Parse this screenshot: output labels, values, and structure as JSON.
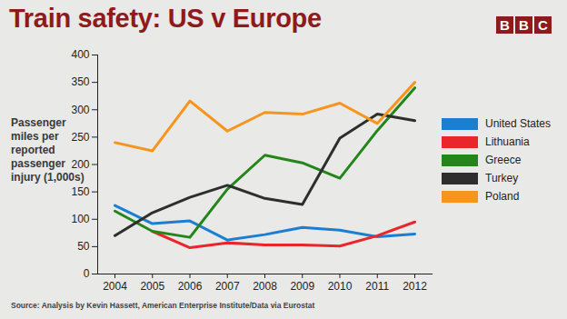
{
  "chart_data": {
    "type": "line",
    "title": "Train safety: US v Europe",
    "logo": "BBC",
    "y_label": "Passenger miles per reported passenger injury (1,000s)",
    "source": "Source: Analysis by Kevin Hassett, American Enterprise Institute/Data via Eurostat",
    "x": [
      2004,
      2005,
      2006,
      2007,
      2008,
      2009,
      2010,
      2011,
      2012
    ],
    "xlim": [
      2004,
      2012
    ],
    "xticks": [
      2004,
      2005,
      2006,
      2007,
      2008,
      2009,
      2010,
      2011,
      2012
    ],
    "ylim": [
      0,
      400
    ],
    "yticks": [
      0,
      50,
      100,
      150,
      200,
      250,
      300,
      350,
      400
    ],
    "grid": false,
    "legend": "right",
    "series": [
      {
        "name": "United States",
        "color": "#1c7ed0",
        "values": [
          125,
          92,
          97,
          62,
          72,
          85,
          80,
          68,
          73
        ]
      },
      {
        "name": "Lithuania",
        "color": "#e8262b",
        "values": [
          null,
          78,
          48,
          57,
          53,
          53,
          51,
          70,
          95
        ]
      },
      {
        "name": "Greece",
        "color": "#24861a",
        "values": [
          115,
          78,
          67,
          155,
          217,
          203,
          175,
          262,
          340
        ]
      },
      {
        "name": "Turkey",
        "color": "#2e2e2e",
        "values": [
          70,
          112,
          140,
          162,
          138,
          127,
          248,
          292,
          280
        ]
      },
      {
        "name": "Poland",
        "color": "#f6951e",
        "values": [
          240,
          225,
          316,
          261,
          295,
          292,
          312,
          275,
          350
        ]
      }
    ]
  }
}
